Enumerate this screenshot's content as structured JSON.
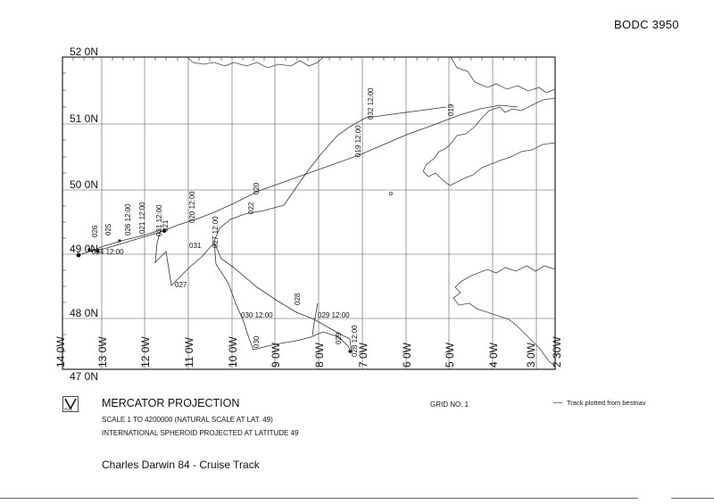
{
  "doc_id": "BODC 3950",
  "map": {
    "lat_labels": [
      "52 0N",
      "51 0N",
      "50 0N",
      "49 0N",
      "48 0N",
      "47 0N"
    ],
    "lon_labels": [
      "14 0W",
      "13 0W",
      "12 0W",
      "11 0W",
      "10 0W",
      "9 0W",
      "8 0W",
      "7 0W",
      "6 0W",
      "5 0W",
      "4 0W",
      "3 0W",
      "2 30W"
    ],
    "track_labels": [
      "026",
      "025",
      "026 12:00",
      "024 12:00",
      "021 12:00",
      "021",
      "031 12:00",
      "020 12:00",
      "031",
      "027 12:00",
      "027",
      "022",
      "020",
      "019 12:00",
      "032 12:00",
      "019",
      "028",
      "029 12:00",
      "030 12:00",
      "030",
      "029",
      "028 12:00"
    ],
    "colors": {
      "track": "#333333",
      "coast": "#444444",
      "grid": "#555555"
    }
  },
  "footer": {
    "logo_text": "RVS",
    "projection_title": "MERCATOR PROJECTION",
    "scale_line": "SCALE 1 TO 4200000 (NATURAL SCALE AT LAT. 49)",
    "spheroid_line": "INTERNATIONAL SPHEROID PROJECTED AT LATITUDE 49",
    "grid_no": "GRID NO. 1",
    "legend_label": "Track plotted from bestnav",
    "cruise_title": "Charles Darwin 84 - Cruise Track"
  }
}
